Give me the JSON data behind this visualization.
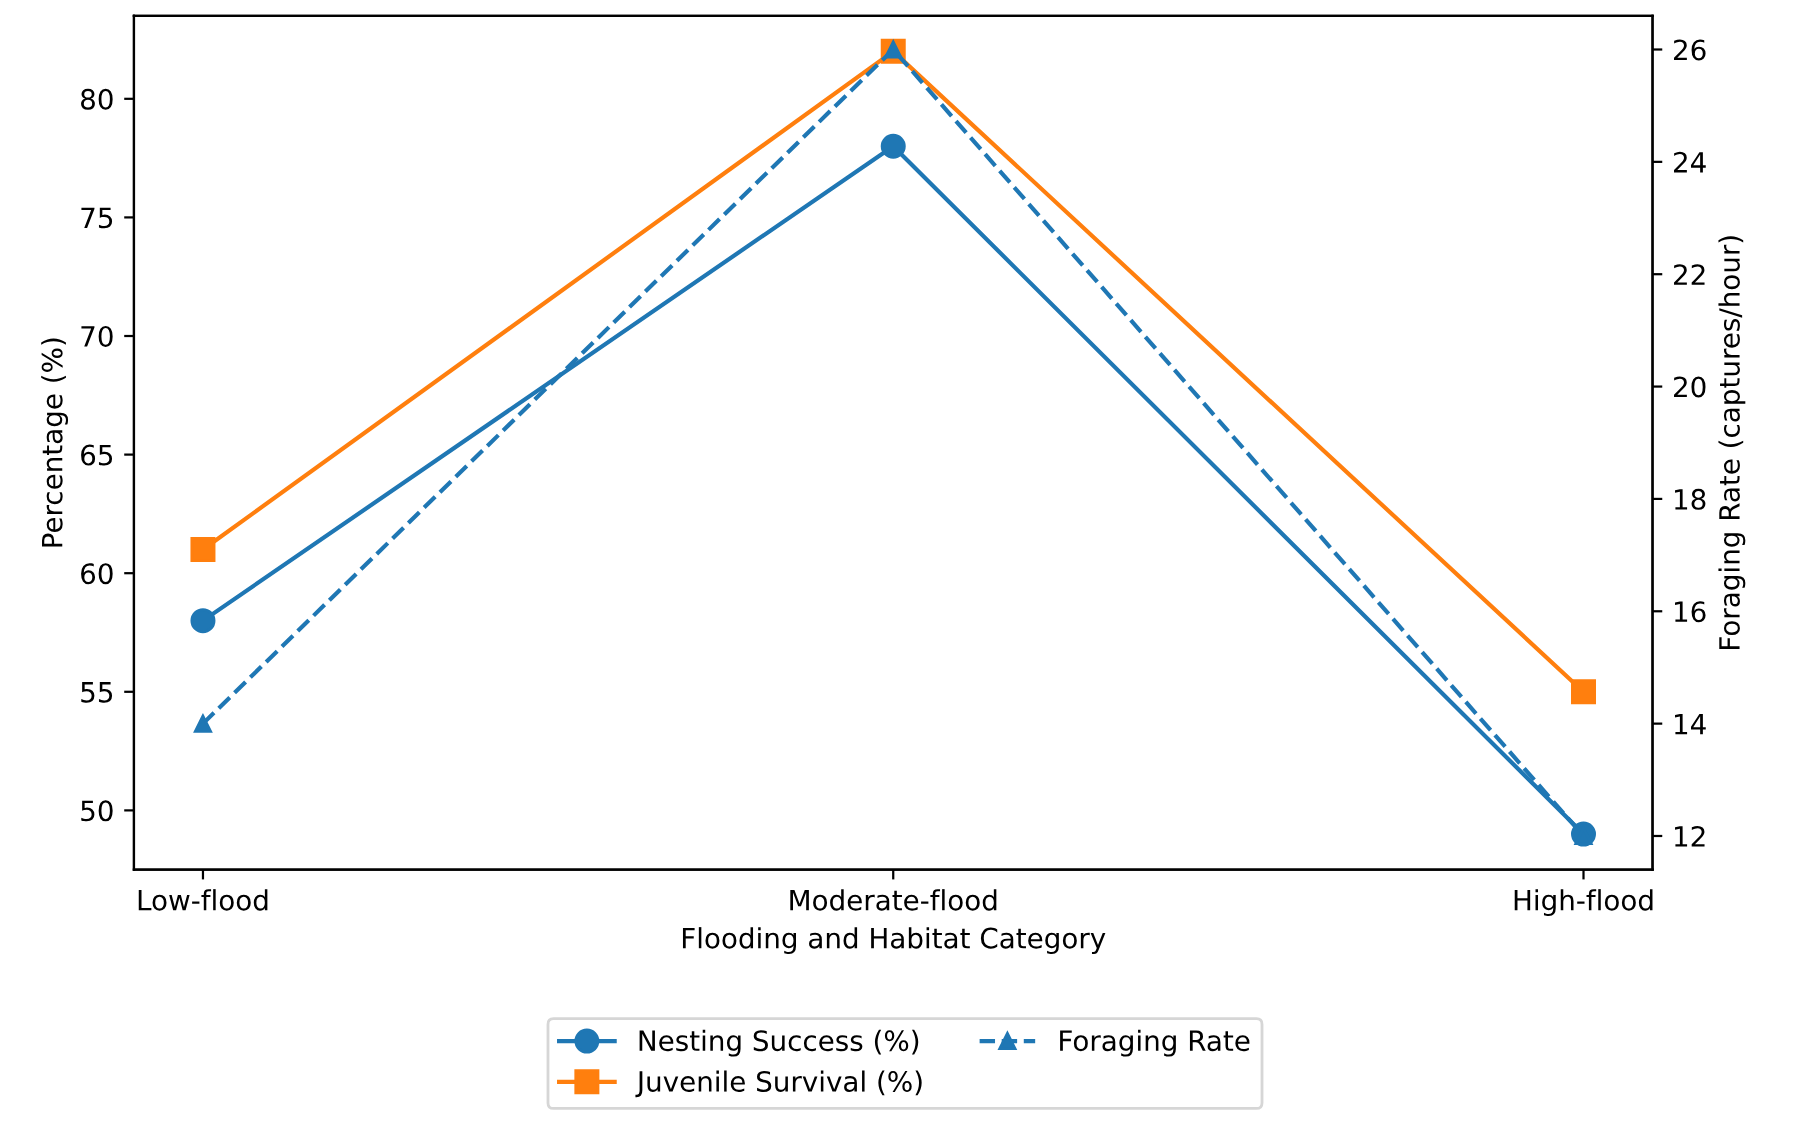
{
  "chart_data": {
    "type": "line",
    "xlabel": "Flooding and Habitat Category",
    "ylabel": "Percentage (%)",
    "y2label": "Foraging Rate (captures/hour)",
    "categories": [
      "Low-flood",
      "Moderate-flood",
      "High-flood"
    ],
    "series": [
      {
        "name": "Nesting Success (%)",
        "color": "#1f77b4",
        "values": [
          58,
          78,
          49
        ],
        "marker": "circle",
        "line_style": "solid"
      },
      {
        "name": "Juvenile Survival (%)",
        "color": "#ff7f0e",
        "values": [
          61,
          82,
          55
        ],
        "marker": "square",
        "line_style": "solid"
      },
      {
        "name": "Foraging Rate",
        "color": "#1f77b4",
        "values": [
          14,
          26,
          12
        ],
        "marker": "triangle",
        "line_style": "dashed",
        "axis": "y2"
      }
    ],
    "ylim": [
      47.5,
      83.5
    ],
    "yticks": [
      50,
      55,
      60,
      65,
      70,
      75,
      80
    ],
    "y2lim": [
      11.4,
      26.6
    ],
    "y2ticks": [
      12,
      14,
      16,
      18,
      20,
      22,
      24,
      26
    ],
    "legend": "bottom",
    "grid": false
  }
}
